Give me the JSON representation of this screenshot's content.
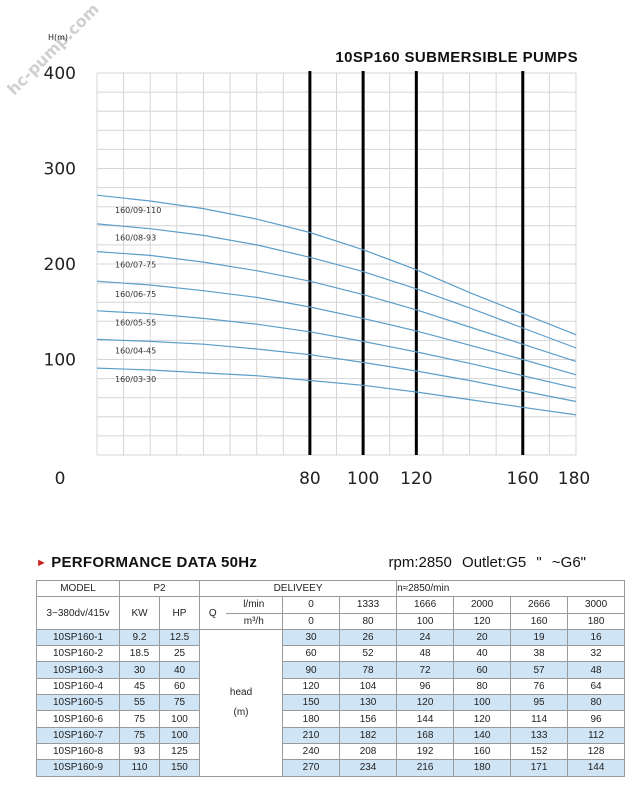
{
  "chart_data": {
    "type": "line",
    "title": "10SP160 SUBMERSIBLE PUMPS",
    "ylabel": "H(m)",
    "xlabel": "",
    "xlim": [
      0,
      180
    ],
    "ylim": [
      0,
      400
    ],
    "x_ticks": [
      "0",
      "80",
      "100",
      "120",
      "160",
      "180"
    ],
    "y_ticks": [
      "400",
      "300",
      "200",
      "100"
    ],
    "grid": true,
    "vertical_marker_lines_x": [
      80,
      100,
      120,
      160
    ],
    "series": [
      {
        "name": "160/09-110",
        "x": [
          0,
          20,
          40,
          60,
          80,
          100,
          120,
          140,
          160,
          180
        ],
        "y": [
          272,
          266,
          258,
          247,
          233,
          215,
          194,
          170,
          148,
          126
        ]
      },
      {
        "name": "160/08-93",
        "x": [
          0,
          20,
          40,
          60,
          80,
          100,
          120,
          140,
          160,
          180
        ],
        "y": [
          242,
          237,
          230,
          220,
          207,
          192,
          174,
          154,
          133,
          112
        ]
      },
      {
        "name": "160/07-75",
        "x": [
          0,
          20,
          40,
          60,
          80,
          100,
          120,
          140,
          160,
          180
        ],
        "y": [
          213,
          209,
          202,
          193,
          182,
          168,
          152,
          134,
          116,
          98
        ]
      },
      {
        "name": "160/06-75",
        "x": [
          0,
          20,
          40,
          60,
          80,
          100,
          120,
          140,
          160,
          180
        ],
        "y": [
          182,
          178,
          172,
          165,
          155,
          143,
          130,
          115,
          100,
          84
        ]
      },
      {
        "name": "160/05-55",
        "x": [
          0,
          20,
          40,
          60,
          80,
          100,
          120,
          140,
          160,
          180
        ],
        "y": [
          151,
          148,
          143,
          137,
          129,
          119,
          108,
          96,
          83,
          70
        ]
      },
      {
        "name": "160/04-45",
        "x": [
          0,
          20,
          40,
          60,
          80,
          100,
          120,
          140,
          160,
          180
        ],
        "y": [
          121,
          119,
          116,
          111,
          105,
          97,
          88,
          78,
          67,
          56
        ]
      },
      {
        "name": "160/03-30",
        "x": [
          0,
          20,
          40,
          60,
          80,
          100,
          120,
          140,
          160,
          180
        ],
        "y": [
          91,
          89,
          86,
          83,
          78,
          73,
          66,
          58,
          50,
          42
        ]
      }
    ]
  },
  "colors": {
    "curve": "#5b9ec9",
    "grid": "#d6d6d6",
    "marker_line": "#000000",
    "highlight_row": "#cfe4f5",
    "arrow": "#cc2020"
  },
  "watermark": "hc-pump.com",
  "performance": {
    "title": "PERFORMANCE DATA 50Hz",
    "arrow_icon": "►",
    "rpm_outlet": "rpm:2850  Outlet:G5 \" ~G6\""
  },
  "table": {
    "model_label": "MODEL",
    "p2_label": "P2",
    "delivery_label": "DELIVEEY",
    "n_label": "n≈2850/min",
    "voltage_label": "3~380dv/415v",
    "kw_label": "KW",
    "hp_label": "HP",
    "q_label": "Q",
    "unit_lmin": "l/min",
    "unit_m3h": "m³/h",
    "lmin_values": [
      "0",
      "1333",
      "1666",
      "2000",
      "2666",
      "3000"
    ],
    "m3h_values": [
      "0",
      "80",
      "100",
      "120",
      "160",
      "180"
    ],
    "head_label": "head",
    "head_unit": "(m)",
    "rows": [
      {
        "model": "10SP160-1",
        "kw": "9.2",
        "hp": "12.5",
        "heads": [
          "30",
          "26",
          "24",
          "20",
          "19",
          "16"
        ],
        "highlight": true
      },
      {
        "model": "10SP160-2",
        "kw": "18.5",
        "hp": "25",
        "heads": [
          "60",
          "52",
          "48",
          "40",
          "38",
          "32"
        ],
        "highlight": false
      },
      {
        "model": "10SP160-3",
        "kw": "30",
        "hp": "40",
        "heads": [
          "90",
          "78",
          "72",
          "60",
          "57",
          "48"
        ],
        "highlight": true
      },
      {
        "model": "10SP160-4",
        "kw": "45",
        "hp": "60",
        "heads": [
          "120",
          "104",
          "96",
          "80",
          "76",
          "64"
        ],
        "highlight": false
      },
      {
        "model": "10SP160-5",
        "kw": "55",
        "hp": "75",
        "heads": [
          "150",
          "130",
          "120",
          "100",
          "95",
          "80"
        ],
        "highlight": true
      },
      {
        "model": "10SP160-6",
        "kw": "75",
        "hp": "100",
        "heads": [
          "180",
          "156",
          "144",
          "120",
          "114",
          "96"
        ],
        "highlight": false
      },
      {
        "model": "10SP160-7",
        "kw": "75",
        "hp": "100",
        "heads": [
          "210",
          "182",
          "168",
          "140",
          "133",
          "112"
        ],
        "highlight": true
      },
      {
        "model": "10SP160-8",
        "kw": "93",
        "hp": "125",
        "heads": [
          "240",
          "208",
          "192",
          "160",
          "152",
          "128"
        ],
        "highlight": false
      },
      {
        "model": "10SP160-9",
        "kw": "110",
        "hp": "150",
        "heads": [
          "270",
          "234",
          "216",
          "180",
          "171",
          "144"
        ],
        "highlight": true
      }
    ]
  }
}
